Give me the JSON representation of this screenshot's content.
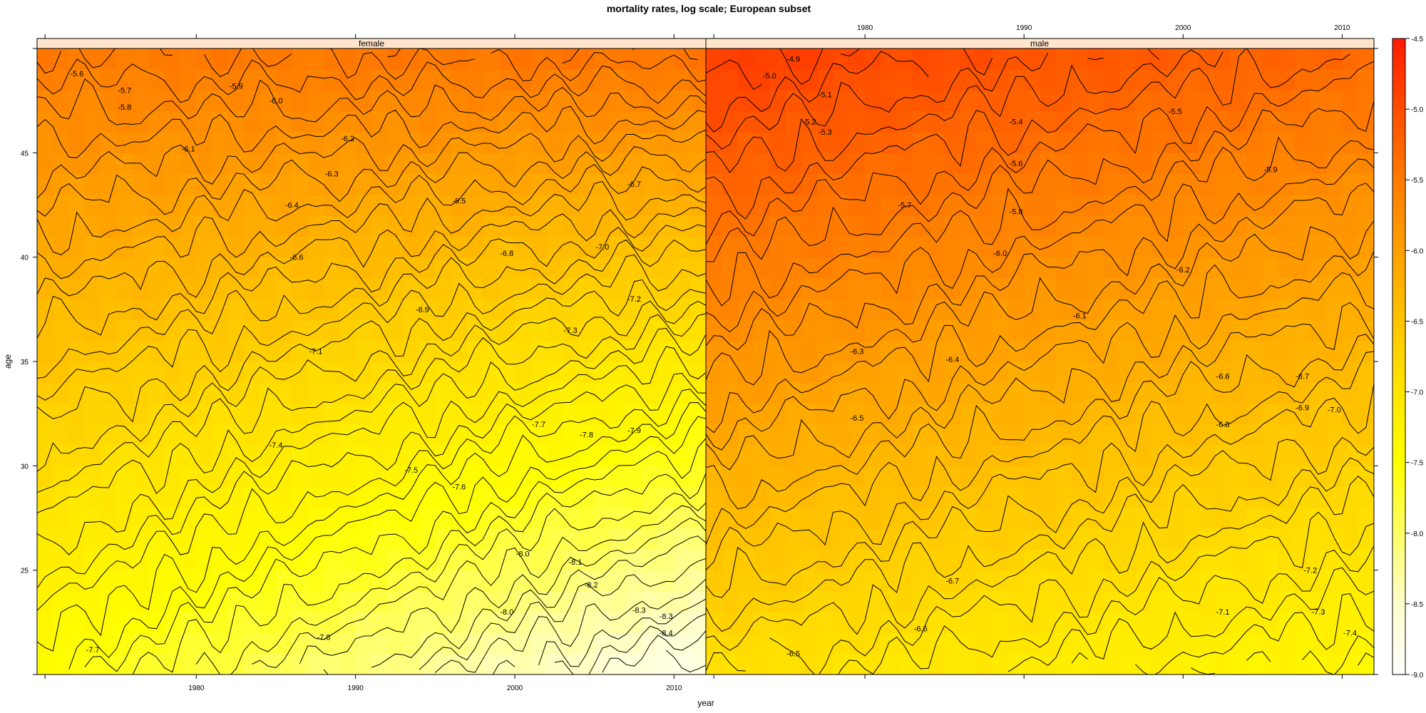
{
  "chart_data": {
    "type": "heatmap",
    "title": "mortality rates, log scale; European subset",
    "xlabel": "year",
    "ylabel": "age",
    "xlim": [
      1970,
      2012
    ],
    "ylim": [
      20,
      50
    ],
    "x_ticks": [
      1980,
      1990,
      2000,
      2010
    ],
    "y_ticks": [
      25,
      30,
      35,
      40,
      45
    ],
    "colorbar": {
      "range": [
        -9.0,
        -4.5
      ],
      "ticks": [
        "-4.5",
        "-5.0",
        "-5.5",
        "-6.0",
        "-6.5",
        "-7.0",
        "-7.5",
        "-8.0",
        "-8.5",
        "-9.0"
      ],
      "colors": [
        "#ff1a00",
        "#ff4d00",
        "#ff7a00",
        "#ffa000",
        "#ffc400",
        "#ffe600",
        "#ffff00",
        "#ffff66",
        "#ffffcc",
        "#ffffff"
      ]
    },
    "panels": [
      {
        "name": "female",
        "corner_values": {
          "y1970_age50": -5.5,
          "y2012_age50": -5.4,
          "y1970_age20": -7.5,
          "y2012_age20": -8.8
        },
        "contour_labels": [
          {
            "text": "-5.6",
            "x": 1972.5,
            "y": 48.8
          },
          {
            "text": "-5.7",
            "x": 1975.5,
            "y": 48.0
          },
          {
            "text": "-5.8",
            "x": 1975.5,
            "y": 47.2
          },
          {
            "text": "-5.9",
            "x": 1982.5,
            "y": 48.2
          },
          {
            "text": "-6.0",
            "x": 1985.0,
            "y": 47.5
          },
          {
            "text": "-6.1",
            "x": 1979.5,
            "y": 45.2
          },
          {
            "text": "-6.2",
            "x": 1989.5,
            "y": 45.7
          },
          {
            "text": "-6.3",
            "x": 1988.5,
            "y": 44.0
          },
          {
            "text": "-6.4",
            "x": 1986.0,
            "y": 42.5
          },
          {
            "text": "-6.5",
            "x": 1996.5,
            "y": 42.7
          },
          {
            "text": "-6.6",
            "x": 1986.3,
            "y": 40.0
          },
          {
            "text": "-6.7",
            "x": 2007.5,
            "y": 43.5
          },
          {
            "text": "-6.8",
            "x": 1999.5,
            "y": 40.2
          },
          {
            "text": "-6.9",
            "x": 1994.2,
            "y": 37.5
          },
          {
            "text": "-7.0",
            "x": 2005.5,
            "y": 40.5
          },
          {
            "text": "-7.1",
            "x": 1987.5,
            "y": 35.5
          },
          {
            "text": "-7.2",
            "x": 2007.5,
            "y": 38.0
          },
          {
            "text": "-7.3",
            "x": 2003.5,
            "y": 36.5
          },
          {
            "text": "-7.4",
            "x": 1985.0,
            "y": 31.0
          },
          {
            "text": "-7.5",
            "x": 1993.5,
            "y": 29.8
          },
          {
            "text": "-7.6",
            "x": 1996.5,
            "y": 29.0
          },
          {
            "text": "-7.7",
            "x": 2001.5,
            "y": 32.0
          },
          {
            "text": "-7.8",
            "x": 2004.5,
            "y": 31.5
          },
          {
            "text": "-7.9",
            "x": 2007.5,
            "y": 31.7
          },
          {
            "text": "-7.8",
            "x": 1988.0,
            "y": 21.8
          },
          {
            "text": "-7.7",
            "x": 1973.5,
            "y": 21.2
          },
          {
            "text": "-8.0",
            "x": 2000.5,
            "y": 25.8
          },
          {
            "text": "-8.0",
            "x": 1999.5,
            "y": 23.0
          },
          {
            "text": "-8.1",
            "x": 2003.8,
            "y": 25.4
          },
          {
            "text": "-8.2",
            "x": 2004.8,
            "y": 24.3
          },
          {
            "text": "-8.3",
            "x": 2007.8,
            "y": 23.1
          },
          {
            "text": "-8.3",
            "x": 2009.5,
            "y": 22.8
          },
          {
            "text": "-8.4",
            "x": 2009.5,
            "y": 22.0
          }
        ]
      },
      {
        "name": "male",
        "corner_values": {
          "y1970_age50": -4.8,
          "y2012_age50": -5.3,
          "y1970_age20": -6.9,
          "y2012_age20": -7.4
        },
        "contour_labels": [
          {
            "text": "-4.9",
            "x": 1975.5,
            "y": 49.5
          },
          {
            "text": "-5.0",
            "x": 1974.0,
            "y": 48.7
          },
          {
            "text": "-5.1",
            "x": 1977.5,
            "y": 47.8
          },
          {
            "text": "-5.2",
            "x": 1976.5,
            "y": 46.5
          },
          {
            "text": "-5.3",
            "x": 1977.5,
            "y": 46.0
          },
          {
            "text": "-5.4",
            "x": 1989.5,
            "y": 46.5
          },
          {
            "text": "-5.5",
            "x": 1999.5,
            "y": 47.0
          },
          {
            "text": "-5.6",
            "x": 1989.5,
            "y": 44.5
          },
          {
            "text": "-5.7",
            "x": 1982.5,
            "y": 42.5
          },
          {
            "text": "-5.8",
            "x": 1989.5,
            "y": 42.2
          },
          {
            "text": "-5.9",
            "x": 2005.5,
            "y": 44.2
          },
          {
            "text": "-6.0",
            "x": 1988.5,
            "y": 40.2
          },
          {
            "text": "-6.1",
            "x": 1993.5,
            "y": 37.2
          },
          {
            "text": "-6.2",
            "x": 2000.0,
            "y": 39.4
          },
          {
            "text": "-6.3",
            "x": 1979.5,
            "y": 35.5
          },
          {
            "text": "-6.4",
            "x": 1985.5,
            "y": 35.1
          },
          {
            "text": "-6.5",
            "x": 1979.5,
            "y": 32.3
          },
          {
            "text": "-6.6",
            "x": 2002.5,
            "y": 34.3
          },
          {
            "text": "-6.7",
            "x": 2007.5,
            "y": 34.3
          },
          {
            "text": "-6.8",
            "x": 2002.5,
            "y": 32.0
          },
          {
            "text": "-6.9",
            "x": 2007.5,
            "y": 32.8
          },
          {
            "text": "-7.0",
            "x": 2009.5,
            "y": 32.7
          },
          {
            "text": "-6.7",
            "x": 1985.5,
            "y": 24.5
          },
          {
            "text": "-6.6",
            "x": 1983.5,
            "y": 22.2
          },
          {
            "text": "-6.5",
            "x": 1975.5,
            "y": 21.0
          },
          {
            "text": "-7.1",
            "x": 2002.5,
            "y": 23.0
          },
          {
            "text": "-7.2",
            "x": 2008.0,
            "y": 25.0
          },
          {
            "text": "-7.3",
            "x": 2008.5,
            "y": 23.0
          },
          {
            "text": "-7.4",
            "x": 2010.5,
            "y": 22.0
          }
        ]
      }
    ]
  }
}
